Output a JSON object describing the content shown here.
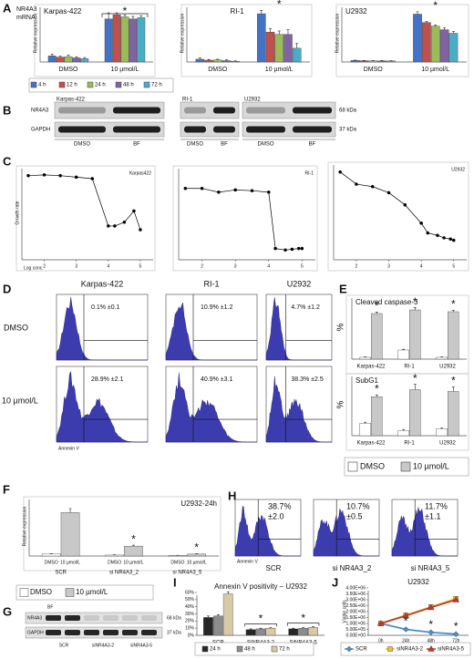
{
  "panel_labels": [
    "A",
    "B",
    "C",
    "D",
    "E",
    "F",
    "G",
    "H",
    "I",
    "J"
  ],
  "mrna_label": [
    "NR4A3",
    "mRNA"
  ],
  "chart_data": [
    {
      "type": "bar",
      "title": "Karpas-422",
      "ylabel": "Relative expression",
      "categories": [
        "DMSO",
        "10 µmol/L"
      ],
      "ylim": [
        0,
        14
      ],
      "annotations": [
        "*"
      ],
      "series": [
        {
          "name": "4 h",
          "color": "#4472c4",
          "values": [
            1.5,
            10.5
          ],
          "errors": [
            0.4,
            1.5
          ]
        },
        {
          "name": "12 h",
          "color": "#c0504d",
          "values": [
            1.2,
            11.5
          ],
          "errors": [
            0.3,
            0.5
          ]
        },
        {
          "name": "24 h",
          "color": "#9bbb59",
          "values": [
            1.3,
            11
          ],
          "errors": [
            0.4,
            0.5
          ]
        },
        {
          "name": "48 h",
          "color": "#8064a2",
          "values": [
            1.0,
            10.5
          ],
          "errors": [
            0.3,
            0.6
          ]
        },
        {
          "name": "72 h",
          "color": "#4bacc6",
          "values": [
            0.8,
            10.8
          ],
          "errors": [
            0.3,
            0.5
          ]
        }
      ]
    },
    {
      "type": "bar",
      "title": "RI-1",
      "ylabel": "Relative expression",
      "categories": [
        "DMSO",
        "10 µmol/L"
      ],
      "ylim": [
        0,
        25
      ],
      "annotations": [
        "*"
      ],
      "series": [
        {
          "color": "#4472c4",
          "values": [
            1.2,
            21
          ],
          "errors": [
            0.5,
            1.5
          ]
        },
        {
          "color": "#c0504d",
          "values": [
            0.8,
            13
          ],
          "errors": [
            0.3,
            1.5
          ]
        },
        {
          "color": "#9bbb59",
          "values": [
            0.9,
            12
          ],
          "errors": [
            0.3,
            1.5
          ]
        },
        {
          "color": "#8064a2",
          "values": [
            0.6,
            12
          ],
          "errors": [
            0.3,
            2
          ]
        },
        {
          "color": "#4bacc6",
          "values": [
            0.3,
            6
          ],
          "errors": [
            0.2,
            2
          ]
        }
      ]
    },
    {
      "type": "bar",
      "title": "U2932",
      "ylabel": "Relative expression",
      "categories": [
        "DMSO",
        "10 µmol/L"
      ],
      "ylim": [
        0,
        48
      ],
      "annotations": [
        "*"
      ],
      "series": [
        {
          "color": "#4472c4",
          "values": [
            1.3,
            40
          ],
          "errors": [
            0.3,
            2
          ]
        },
        {
          "color": "#c0504d",
          "values": [
            1.1,
            33
          ],
          "errors": [
            0.2,
            1
          ]
        },
        {
          "color": "#9bbb59",
          "values": [
            1.0,
            30
          ],
          "errors": [
            0.2,
            1
          ]
        },
        {
          "color": "#8064a2",
          "values": [
            1.0,
            27
          ],
          "errors": [
            0.2,
            1.5
          ]
        },
        {
          "color": "#4bacc6",
          "values": [
            0.9,
            24
          ],
          "errors": [
            0.2,
            1.5
          ]
        }
      ]
    },
    {
      "type": "line",
      "title": "Karpas422",
      "ylabel": "Growth rate",
      "xlabel": "Log conc.",
      "x": [
        1.5,
        2,
        2.5,
        3,
        3.5,
        4,
        4.2,
        4.5,
        4.8,
        5
      ],
      "xlim": [
        1.3,
        5.4
      ],
      "xticks": [
        2,
        3,
        4,
        5
      ],
      "ylim": [
        0,
        1.25
      ],
      "series": [
        {
          "color": "#000000",
          "marker": "circle",
          "values": [
            1.12,
            1.13,
            1.12,
            1.1,
            1.08,
            0.45,
            0.45,
            0.5,
            0.65,
            0.4
          ]
        }
      ]
    },
    {
      "type": "line",
      "title": "RI-1",
      "x": [
        1.5,
        2,
        2.5,
        3,
        3.5,
        4,
        4.2,
        4.5,
        4.7,
        4.9,
        5
      ],
      "xlim": [
        1.3,
        5.4
      ],
      "xticks": [
        2,
        3,
        4,
        5
      ],
      "ylim": [
        0,
        1.25
      ],
      "series": [
        {
          "color": "#000000",
          "marker": "circle",
          "values": [
            0.95,
            0.95,
            0.9,
            0.93,
            0.92,
            0.9,
            0.15,
            0.13,
            0.14,
            0.15,
            0.15
          ]
        }
      ]
    },
    {
      "type": "line",
      "title": "U2932",
      "x": [
        1.5,
        2,
        2.5,
        3,
        3.5,
        4,
        4.2,
        4.5,
        4.7,
        4.9,
        5
      ],
      "xlim": [
        1.3,
        5.4
      ],
      "xticks": [
        2,
        3,
        4,
        5
      ],
      "ylim": [
        0,
        0.8
      ],
      "series": [
        {
          "color": "#000000",
          "marker": "circle",
          "values": [
            0.72,
            0.62,
            0.6,
            0.55,
            0.45,
            0.3,
            0.22,
            0.2,
            0.18,
            0.17,
            0.16
          ]
        }
      ]
    },
    {
      "type": "bar",
      "title": "Cleaved caspase-3",
      "ylabel": "%",
      "categories": [
        "Karpas-422",
        "RI-1",
        "U2932"
      ],
      "ylim": [
        0,
        35
      ],
      "annotations": [
        "*",
        "*",
        "*"
      ],
      "series": [
        {
          "name": "DMSO",
          "color": "#ffffff",
          "values": [
            1,
            5,
            1
          ],
          "errors": [
            0.2,
            0.4,
            0.2
          ]
        },
        {
          "name": "10 µmol/L",
          "color": "#c8c8c8",
          "values": [
            25,
            27,
            26
          ],
          "errors": [
            0.8,
            1.2,
            0.8
          ]
        }
      ]
    },
    {
      "type": "bar",
      "title": "SubG1",
      "ylabel": "%",
      "categories": [
        "Karpas-422",
        "RI-1",
        "U2932"
      ],
      "ylim": [
        0,
        35
      ],
      "annotations": [
        "*",
        "*",
        "*"
      ],
      "series": [
        {
          "color": "#ffffff",
          "values": [
            7,
            3,
            4
          ],
          "errors": [
            0.6,
            0.5,
            0.5
          ]
        },
        {
          "color": "#c8c8c8",
          "values": [
            22,
            26,
            25
          ],
          "errors": [
            1,
            3,
            2.5
          ]
        }
      ]
    },
    {
      "type": "bar",
      "title": "U2932-24h",
      "ylabel": "Relative expression",
      "categories": [
        "SCR",
        "si NR4A3_2",
        "si NR4A3_5"
      ],
      "ylim": [
        0,
        30
      ],
      "annotations": [
        "*",
        "*"
      ],
      "series": [
        {
          "name": "DMSO",
          "color": "#ffffff",
          "values": [
            1,
            0.5,
            0.3
          ],
          "errors": [
            0.2,
            0.1,
            0.1
          ]
        },
        {
          "name": "10 µmol/L",
          "color": "#c8c8c8",
          "values": [
            22,
            5,
            1
          ],
          "errors": [
            2,
            0.5,
            0.2
          ]
        }
      ]
    },
    {
      "type": "bar",
      "title": "Annexin V positivity – U2932",
      "categories": [
        "SCR",
        "SiNR4A3-2",
        "SiNR4A3-5"
      ],
      "ylim": [
        0,
        60
      ],
      "yticks": [
        {
          "value": 0,
          "label": "0%"
        },
        {
          "value": 10,
          "label": "10%"
        },
        {
          "value": 20,
          "label": "20%"
        },
        {
          "value": 30,
          "label": "30%"
        },
        {
          "value": 40,
          "label": "40%"
        },
        {
          "value": 50,
          "label": "50%"
        },
        {
          "value": 60,
          "label": "60%"
        }
      ],
      "annotations": [
        "*",
        "*"
      ],
      "series": [
        {
          "name": "24 h",
          "color": "#262626",
          "values": [
            25,
            8,
            9
          ],
          "errors": [
            2,
            1,
            1
          ]
        },
        {
          "name": "48 h",
          "color": "#8c8c8c",
          "values": [
            27,
            9,
            10
          ],
          "errors": [
            2,
            1,
            1
          ]
        },
        {
          "name": "72 h",
          "color": "#d8c9a7",
          "values": [
            58,
            10,
            11
          ],
          "errors": [
            3,
            1,
            1
          ]
        }
      ]
    },
    {
      "type": "line",
      "title": "U2932",
      "ylabel": "Viable cells",
      "categories": [
        "0h",
        "24h",
        "48h",
        "72h"
      ],
      "ylim": [
        0,
        4000000
      ],
      "yticks": [
        {
          "value": 0,
          "label": "0.00E+00"
        },
        {
          "value": 500000,
          "label": "5.00E+05"
        },
        {
          "value": 1000000,
          "label": "1.00E+06"
        },
        {
          "value": 1500000,
          "label": "1.50E+06"
        },
        {
          "value": 2000000,
          "label": "2.00E+06"
        },
        {
          "value": 2500000,
          "label": "2.50E+06"
        },
        {
          "value": 3000000,
          "label": "3.00E+06"
        },
        {
          "value": 3500000,
          "label": "3.50E+06"
        },
        {
          "value": 4000000,
          "label": "4.00E+06"
        }
      ],
      "annotations": [
        "*",
        "*",
        "*"
      ],
      "series": [
        {
          "name": "SCR",
          "color": "#4a90c8",
          "marker": "diamond",
          "values": [
            1000000,
            500000,
            250000,
            100000
          ]
        },
        {
          "name": "siNR4A3-2",
          "color": "#f2c028",
          "marker": "square",
          "values": [
            1000000,
            1700000,
            2400000,
            3100000
          ]
        },
        {
          "name": "siNR4A3-5",
          "color": "#c0392b",
          "marker": "triangle",
          "values": [
            1000000,
            1650000,
            2350000,
            3000000
          ]
        }
      ]
    }
  ],
  "blot_b": {
    "cell_lines": [
      "Karpas-422",
      "RI-1",
      "U2932"
    ],
    "rows": [
      "NR4A3",
      "GAPDH"
    ],
    "lanes": [
      "DMSO",
      "BF"
    ],
    "sizes": [
      "68 kDa",
      "37 kDa"
    ]
  },
  "flow_d": {
    "cell_lines": [
      "Karpas-422",
      "RI-1",
      "U2932"
    ],
    "conditions": [
      "DMSO",
      "10 µmol/L"
    ],
    "percentages": [
      [
        "0.1% ±0.1",
        "10.9% ±1.2",
        "4.7% ±1.2"
      ],
      [
        "28.9% ±2.1",
        "40.9% ±3.1",
        "38.3% ±2.5"
      ]
    ],
    "axis_label": "Annexin V"
  },
  "flow_h": {
    "samples": [
      "SCR",
      "si NR4A3_2",
      "si NR4A3_5"
    ],
    "percentages": [
      [
        "38.7%",
        "±2.0"
      ],
      [
        "10.7%",
        "±0.5"
      ],
      [
        "11.7%",
        "±1.1"
      ]
    ],
    "axis_label": "Annexin V"
  },
  "blot_g": {
    "treatment": "BF",
    "rows": [
      "NR4A3",
      "GAPDH"
    ],
    "sizes": [
      "68 kDa",
      "37 kDa"
    ],
    "lanes": [
      "SCR",
      "siNR4A3-2",
      "siNR4A3-5"
    ]
  }
}
